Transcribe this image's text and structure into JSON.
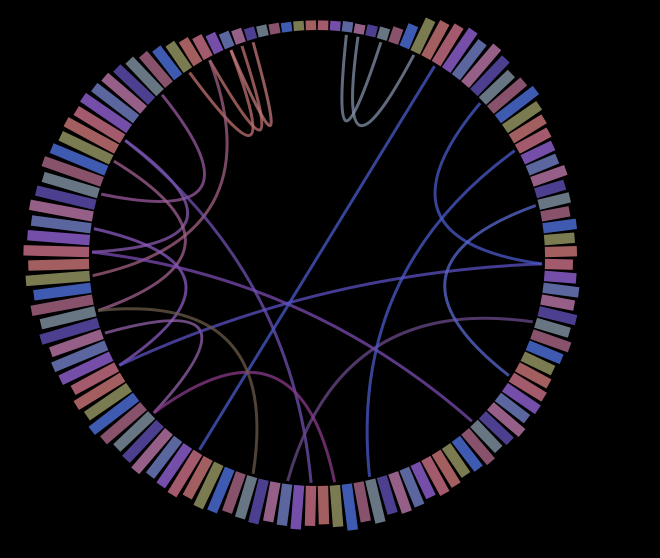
{
  "chart_data": {
    "type": "circular-bar",
    "values": [
      12,
      12,
      13,
      12,
      14,
      15,
      20,
      30,
      45,
      50,
      55,
      60,
      55,
      62,
      58,
      50,
      55,
      60,
      52,
      48,
      45,
      42,
      40,
      45,
      38,
      40,
      36,
      42,
      38,
      40,
      35,
      40,
      45,
      42,
      48,
      44,
      50,
      46,
      42,
      45,
      48,
      50,
      46,
      52,
      48,
      45,
      50,
      47,
      44,
      48,
      50,
      46,
      50,
      52,
      48,
      55,
      50,
      58,
      52,
      48,
      50,
      55,
      52,
      50,
      56,
      54,
      52,
      58,
      60,
      55,
      62,
      60,
      58,
      65,
      62,
      60,
      66,
      70,
      64,
      68,
      62,
      70,
      72,
      68,
      75,
      70,
      78,
      72,
      80,
      76,
      82,
      78,
      75,
      80,
      76,
      72,
      78,
      74,
      70,
      72,
      68,
      70,
      66,
      64,
      60,
      56,
      50,
      45,
      40,
      35,
      30,
      25,
      20,
      18,
      15,
      14,
      13,
      12,
      12,
      12
    ],
    "rlim": [
      0,
      100
    ],
    "palette": [
      "#c06a80",
      "#8a5cc8",
      "#6a78b8",
      "#b070a0",
      "#5a4aa8",
      "#7a8a9a",
      "#a06080",
      "#4a6ad0",
      "#909060",
      "#c07070"
    ],
    "links": [
      {
        "source": 2,
        "target": 5,
        "color": "#8090a8"
      },
      {
        "source": 3,
        "target": 8,
        "color": "#8090a8"
      },
      {
        "source": 110,
        "target": 113,
        "color": "#c07070"
      },
      {
        "source": 108,
        "target": 112,
        "color": "#c07070"
      },
      {
        "source": 112,
        "target": 114,
        "color": "#c07878"
      },
      {
        "source": 95,
        "target": 105,
        "color": "#9a5aa0"
      },
      {
        "source": 90,
        "target": 100,
        "color": "#8a5ab0"
      },
      {
        "source": 85,
        "target": 98,
        "color": "#a06090"
      },
      {
        "source": 88,
        "target": 110,
        "color": "#a06080"
      },
      {
        "source": 92,
        "target": 80,
        "color": "#8a5ac0"
      },
      {
        "source": 83,
        "target": 75,
        "color": "#9060a8"
      },
      {
        "source": 90,
        "target": 45,
        "color": "#7a4ab0"
      },
      {
        "source": 100,
        "target": 60,
        "color": "#7050b0"
      },
      {
        "source": 80,
        "target": 30,
        "color": "#5a50c0"
      },
      {
        "source": 70,
        "target": 10,
        "color": "#4a5ac8"
      },
      {
        "source": 62,
        "target": 35,
        "color": "#6a4a8a"
      },
      {
        "source": 55,
        "target": 20,
        "color": "#4a5ac8"
      },
      {
        "source": 30,
        "target": 15,
        "color": "#4a5ac8"
      },
      {
        "source": 25,
        "target": 40,
        "color": "#5a6ad0"
      },
      {
        "source": 58,
        "target": 75,
        "color": "#8a3a8a"
      },
      {
        "source": 65,
        "target": 85,
        "color": "#6a5a4a"
      }
    ]
  }
}
